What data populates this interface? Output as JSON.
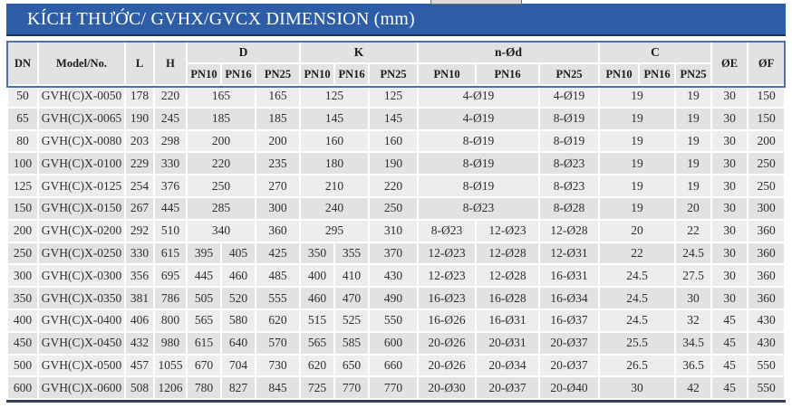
{
  "page": {
    "title": "KÍCH THƯỚC/ GVHX/GVCX DIMENSION (mm)"
  },
  "colors": {
    "banner_blue": "#2e5da7",
    "banner_underline_navy": "#1c3355",
    "header_border_blue": "#4a71a8",
    "header_bg": "#e2e2e2",
    "row_light": "#eeedee",
    "row_dark": "#e2e2e3",
    "bottom_rule": "#33415c"
  },
  "table": {
    "headers": {
      "dn": "DN",
      "model": "Model/No.",
      "l": "L",
      "h": "H",
      "d": "D",
      "k": "K",
      "nod": "n-Ød",
      "c": "C",
      "oe": "ØE",
      "of": "ØF",
      "pn": [
        "PN10",
        "PN16",
        "PN25"
      ]
    },
    "rows": [
      {
        "dn": "50",
        "model": "GVH(C)X-0050",
        "l": "178",
        "h": "220",
        "d": [
          "165",
          "165"
        ],
        "k": [
          "125",
          "125"
        ],
        "nod": [
          "4-Ø19",
          "4-Ø19"
        ],
        "c": [
          "19",
          "19"
        ],
        "oe": "30",
        "of": "150"
      },
      {
        "dn": "65",
        "model": "GVH(C)X-0065",
        "l": "190",
        "h": "245",
        "d": [
          "185",
          "185"
        ],
        "k": [
          "145",
          "145"
        ],
        "nod": [
          "4-Ø19",
          "8-Ø19"
        ],
        "c": [
          "19",
          "19"
        ],
        "oe": "30",
        "of": "150"
      },
      {
        "dn": "80",
        "model": "GVH(C)X-0080",
        "l": "203",
        "h": "298",
        "d": [
          "200",
          "200"
        ],
        "k": [
          "160",
          "160"
        ],
        "nod": [
          "8-Ø19",
          "8-Ø19"
        ],
        "c": [
          "19",
          "19"
        ],
        "oe": "30",
        "of": "200"
      },
      {
        "dn": "100",
        "model": "GVH(C)X-0100",
        "l": "229",
        "h": "330",
        "d": [
          "220",
          "235"
        ],
        "k": [
          "180",
          "190"
        ],
        "nod": [
          "8-Ø19",
          "8-Ø23"
        ],
        "c": [
          "19",
          "19"
        ],
        "oe": "30",
        "of": "250"
      },
      {
        "dn": "125",
        "model": "GVH(C)X-0125",
        "l": "254",
        "h": "376",
        "d": [
          "250",
          "270"
        ],
        "k": [
          "210",
          "220"
        ],
        "nod": [
          "8-Ø19",
          "8-Ø23"
        ],
        "c": [
          "19",
          "19"
        ],
        "oe": "30",
        "of": "250"
      },
      {
        "dn": "150",
        "model": "GVH(C)X-0150",
        "l": "267",
        "h": "445",
        "d": [
          "285",
          "300"
        ],
        "k": [
          "240",
          "250"
        ],
        "nod": [
          "8-Ø23",
          "8-Ø28"
        ],
        "c": [
          "19",
          "20"
        ],
        "oe": "30",
        "of": "300"
      },
      {
        "dn": "200",
        "model": "GVH(C)X-0200",
        "l": "292",
        "h": "510",
        "d": [
          "340",
          "360"
        ],
        "k": [
          "295",
          "310"
        ],
        "nod": [
          "8-Ø23",
          "12-Ø23",
          "12-Ø28"
        ],
        "c": [
          "20",
          "22"
        ],
        "oe": "30",
        "of": "360"
      },
      {
        "dn": "250",
        "model": "GVH(C)X-0250",
        "l": "330",
        "h": "615",
        "d": [
          "395",
          "405",
          "425"
        ],
        "k": [
          "350",
          "355",
          "370"
        ],
        "nod": [
          "12-Ø23",
          "12-Ø28",
          "12-Ø31"
        ],
        "c": [
          "22",
          "24.5"
        ],
        "oe": "30",
        "of": "360"
      },
      {
        "dn": "300",
        "model": "GVH(C)X-0300",
        "l": "356",
        "h": "695",
        "d": [
          "445",
          "460",
          "485"
        ],
        "k": [
          "400",
          "410",
          "430"
        ],
        "nod": [
          "12-Ø23",
          "12-Ø28",
          "16-Ø31"
        ],
        "c": [
          "24.5",
          "27.5"
        ],
        "oe": "30",
        "of": "360"
      },
      {
        "dn": "350",
        "model": "GVH(C)X-0350",
        "l": "381",
        "h": "786",
        "d": [
          "505",
          "520",
          "555"
        ],
        "k": [
          "460",
          "470",
          "490"
        ],
        "nod": [
          "16-Ø23",
          "16-Ø28",
          "16-Ø34"
        ],
        "c": [
          "24.5",
          "30"
        ],
        "oe": "30",
        "of": "360"
      },
      {
        "dn": "400",
        "model": "GVH(C)X-0400",
        "l": "406",
        "h": "800",
        "d": [
          "565",
          "580",
          "620"
        ],
        "k": [
          "515",
          "525",
          "550"
        ],
        "nod": [
          "16-Ø26",
          "16-Ø31",
          "16-Ø37"
        ],
        "c": [
          "24.5",
          "32"
        ],
        "oe": "45",
        "of": "430"
      },
      {
        "dn": "450",
        "model": "GVH(C)X-0450",
        "l": "432",
        "h": "980",
        "d": [
          "615",
          "640",
          "570"
        ],
        "k": [
          "565",
          "585",
          "600"
        ],
        "nod": [
          "20-Ø26",
          "20-Ø31",
          "20-Ø37"
        ],
        "c": [
          "25.5",
          "34.5"
        ],
        "oe": "45",
        "of": "430"
      },
      {
        "dn": "500",
        "model": "GVH(C)X-0500",
        "l": "457",
        "h": "1055",
        "d": [
          "670",
          "704",
          "730"
        ],
        "k": [
          "620",
          "650",
          "660"
        ],
        "nod": [
          "20-Ø26",
          "20-Ø34",
          "20-Ø37"
        ],
        "c": [
          "26.5",
          "36.5"
        ],
        "oe": "45",
        "of": "550"
      },
      {
        "dn": "600",
        "model": "GVH(C)X-0600",
        "l": "508",
        "h": "1206",
        "d": [
          "780",
          "827",
          "845"
        ],
        "k": [
          "725",
          "770",
          "770"
        ],
        "nod": [
          "20-Ø30",
          "20-Ø37",
          "20-Ø40"
        ],
        "c": [
          "30",
          "42"
        ],
        "oe": "45",
        "of": "550"
      }
    ]
  }
}
